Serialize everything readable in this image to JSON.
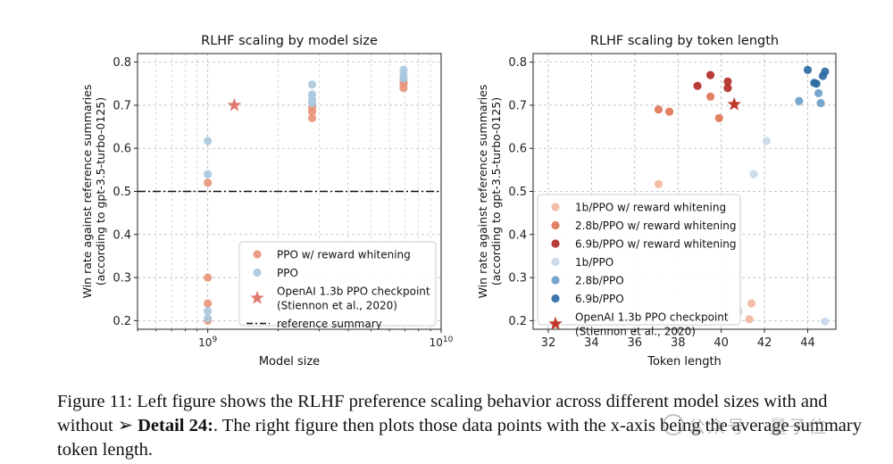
{
  "chart_data": [
    {
      "type": "scatter",
      "title": "RLHF scaling by model size",
      "xlabel": "Model size",
      "ylabel": "Win rate against reference summaries\n(according to gpt-3.5-turbo-0125)",
      "xscale": "log",
      "xlim": [
        500000000,
        10000000000
      ],
      "ylim": [
        0.18,
        0.82
      ],
      "yticks": [
        0.2,
        0.3,
        0.4,
        0.5,
        0.6,
        0.7,
        0.8
      ],
      "ytick_labels": [
        "0.2",
        "0.3",
        "0.4",
        "0.5",
        "0.6",
        "0.7",
        "0.8"
      ],
      "xticks": [
        1000000000,
        10000000000
      ],
      "xtick_labels": [
        "10^9",
        "10^10"
      ],
      "grid": true,
      "legend_placement": "lower-right",
      "series": [
        {
          "name": "PPO w/ reward whitening",
          "color": "#e8967a",
          "marker": "circle",
          "points": [
            {
              "x": 1000000000,
              "y": 0.52
            },
            {
              "x": 1000000000,
              "y": 0.3
            },
            {
              "x": 1000000000,
              "y": 0.24
            },
            {
              "x": 1000000000,
              "y": 0.2
            },
            {
              "x": 2800000000,
              "y": 0.67
            },
            {
              "x": 2800000000,
              "y": 0.685
            },
            {
              "x": 2800000000,
              "y": 0.695
            },
            {
              "x": 6900000000,
              "y": 0.74
            },
            {
              "x": 6900000000,
              "y": 0.75
            },
            {
              "x": 6900000000,
              "y": 0.755
            }
          ]
        },
        {
          "name": "PPO",
          "color": "#a9c8de",
          "marker": "circle",
          "points": [
            {
              "x": 1000000000,
              "y": 0.617
            },
            {
              "x": 1000000000,
              "y": 0.54
            },
            {
              "x": 1000000000,
              "y": 0.222
            },
            {
              "x": 1000000000,
              "y": 0.205
            },
            {
              "x": 2800000000,
              "y": 0.748
            },
            {
              "x": 2800000000,
              "y": 0.725
            },
            {
              "x": 2800000000,
              "y": 0.713
            },
            {
              "x": 2800000000,
              "y": 0.705
            },
            {
              "x": 6900000000,
              "y": 0.782
            },
            {
              "x": 6900000000,
              "y": 0.77
            },
            {
              "x": 6900000000,
              "y": 0.762
            }
          ]
        },
        {
          "name": "OpenAI 1.3b PPO checkpoint\n(Stiennon et al., 2020)",
          "color": "#e0786f",
          "marker": "star",
          "points": [
            {
              "x": 1300000000,
              "y": 0.7
            }
          ]
        }
      ],
      "reference_line": {
        "name": "reference summary",
        "y": 0.5,
        "style": "dashdot",
        "color": "#111111"
      }
    },
    {
      "type": "scatter",
      "title": "RLHF scaling by token length",
      "xlabel": "Token length",
      "ylabel": "Win rate against reference summaries\n(according to gpt-3.5-turbo-0125)",
      "xlim": [
        31.3,
        45.3
      ],
      "ylim": [
        0.18,
        0.82
      ],
      "xticks": [
        32,
        34,
        36,
        38,
        40,
        42,
        44
      ],
      "xtick_labels": [
        "32",
        "34",
        "36",
        "38",
        "40",
        "42",
        "44"
      ],
      "yticks": [
        0.2,
        0.3,
        0.4,
        0.5,
        0.6,
        0.7,
        0.8
      ],
      "ytick_labels": [
        "0.2",
        "0.3",
        "0.4",
        "0.5",
        "0.6",
        "0.7",
        "0.8"
      ],
      "grid": true,
      "legend_placement": "lower-left",
      "series": [
        {
          "name": "1b/PPO w/ reward whitening",
          "color": "#f2b8a0",
          "marker": "circle",
          "points": [
            {
              "x": 37.1,
              "y": 0.517
            },
            {
              "x": 41.4,
              "y": 0.24
            },
            {
              "x": 41.3,
              "y": 0.203
            }
          ]
        },
        {
          "name": "2.8b/PPO w/ reward whitening",
          "color": "#df7656",
          "marker": "circle",
          "points": [
            {
              "x": 37.1,
              "y": 0.69
            },
            {
              "x": 37.6,
              "y": 0.685
            },
            {
              "x": 39.5,
              "y": 0.72
            },
            {
              "x": 39.9,
              "y": 0.67
            }
          ]
        },
        {
          "name": "6.9b/PPO w/ reward whitening",
          "color": "#b22b27",
          "marker": "circle",
          "points": [
            {
              "x": 38.9,
              "y": 0.745
            },
            {
              "x": 39.5,
              "y": 0.77
            },
            {
              "x": 40.3,
              "y": 0.755
            },
            {
              "x": 40.3,
              "y": 0.74
            }
          ]
        },
        {
          "name": "1b/PPO",
          "color": "#c9d9e9",
          "marker": "circle",
          "points": [
            {
              "x": 42.1,
              "y": 0.617
            },
            {
              "x": 41.5,
              "y": 0.54
            },
            {
              "x": 40.8,
              "y": 0.222
            },
            {
              "x": 44.8,
              "y": 0.198
            }
          ]
        },
        {
          "name": "2.8b/PPO",
          "color": "#6d9fca",
          "marker": "circle",
          "points": [
            {
              "x": 43.6,
              "y": 0.71
            },
            {
              "x": 44.5,
              "y": 0.728
            },
            {
              "x": 44.6,
              "y": 0.705
            }
          ]
        },
        {
          "name": "6.9b/PPO",
          "color": "#2d6aa3",
          "marker": "circle",
          "points": [
            {
              "x": 44.0,
              "y": 0.782
            },
            {
              "x": 44.3,
              "y": 0.752
            },
            {
              "x": 44.4,
              "y": 0.75
            },
            {
              "x": 44.7,
              "y": 0.768
            },
            {
              "x": 44.8,
              "y": 0.778
            }
          ]
        },
        {
          "name": "OpenAI 1.3b PPO checkpoint\n(Stiennon et al., 2020)",
          "color": "#c0392b",
          "marker": "star",
          "points": [
            {
              "x": 40.6,
              "y": 0.702
            }
          ]
        }
      ]
    }
  ],
  "caption": {
    "part1": "Figure 11: Left figure shows the RLHF preference scaling behavior across different model sizes with and without ",
    "arrow": "➢ ",
    "bold": "Detail 24:",
    "part2": ". The right figure then plots those data points with the x-axis being the average summary token length."
  },
  "watermark": {
    "text": "公众号 · 量子位"
  }
}
